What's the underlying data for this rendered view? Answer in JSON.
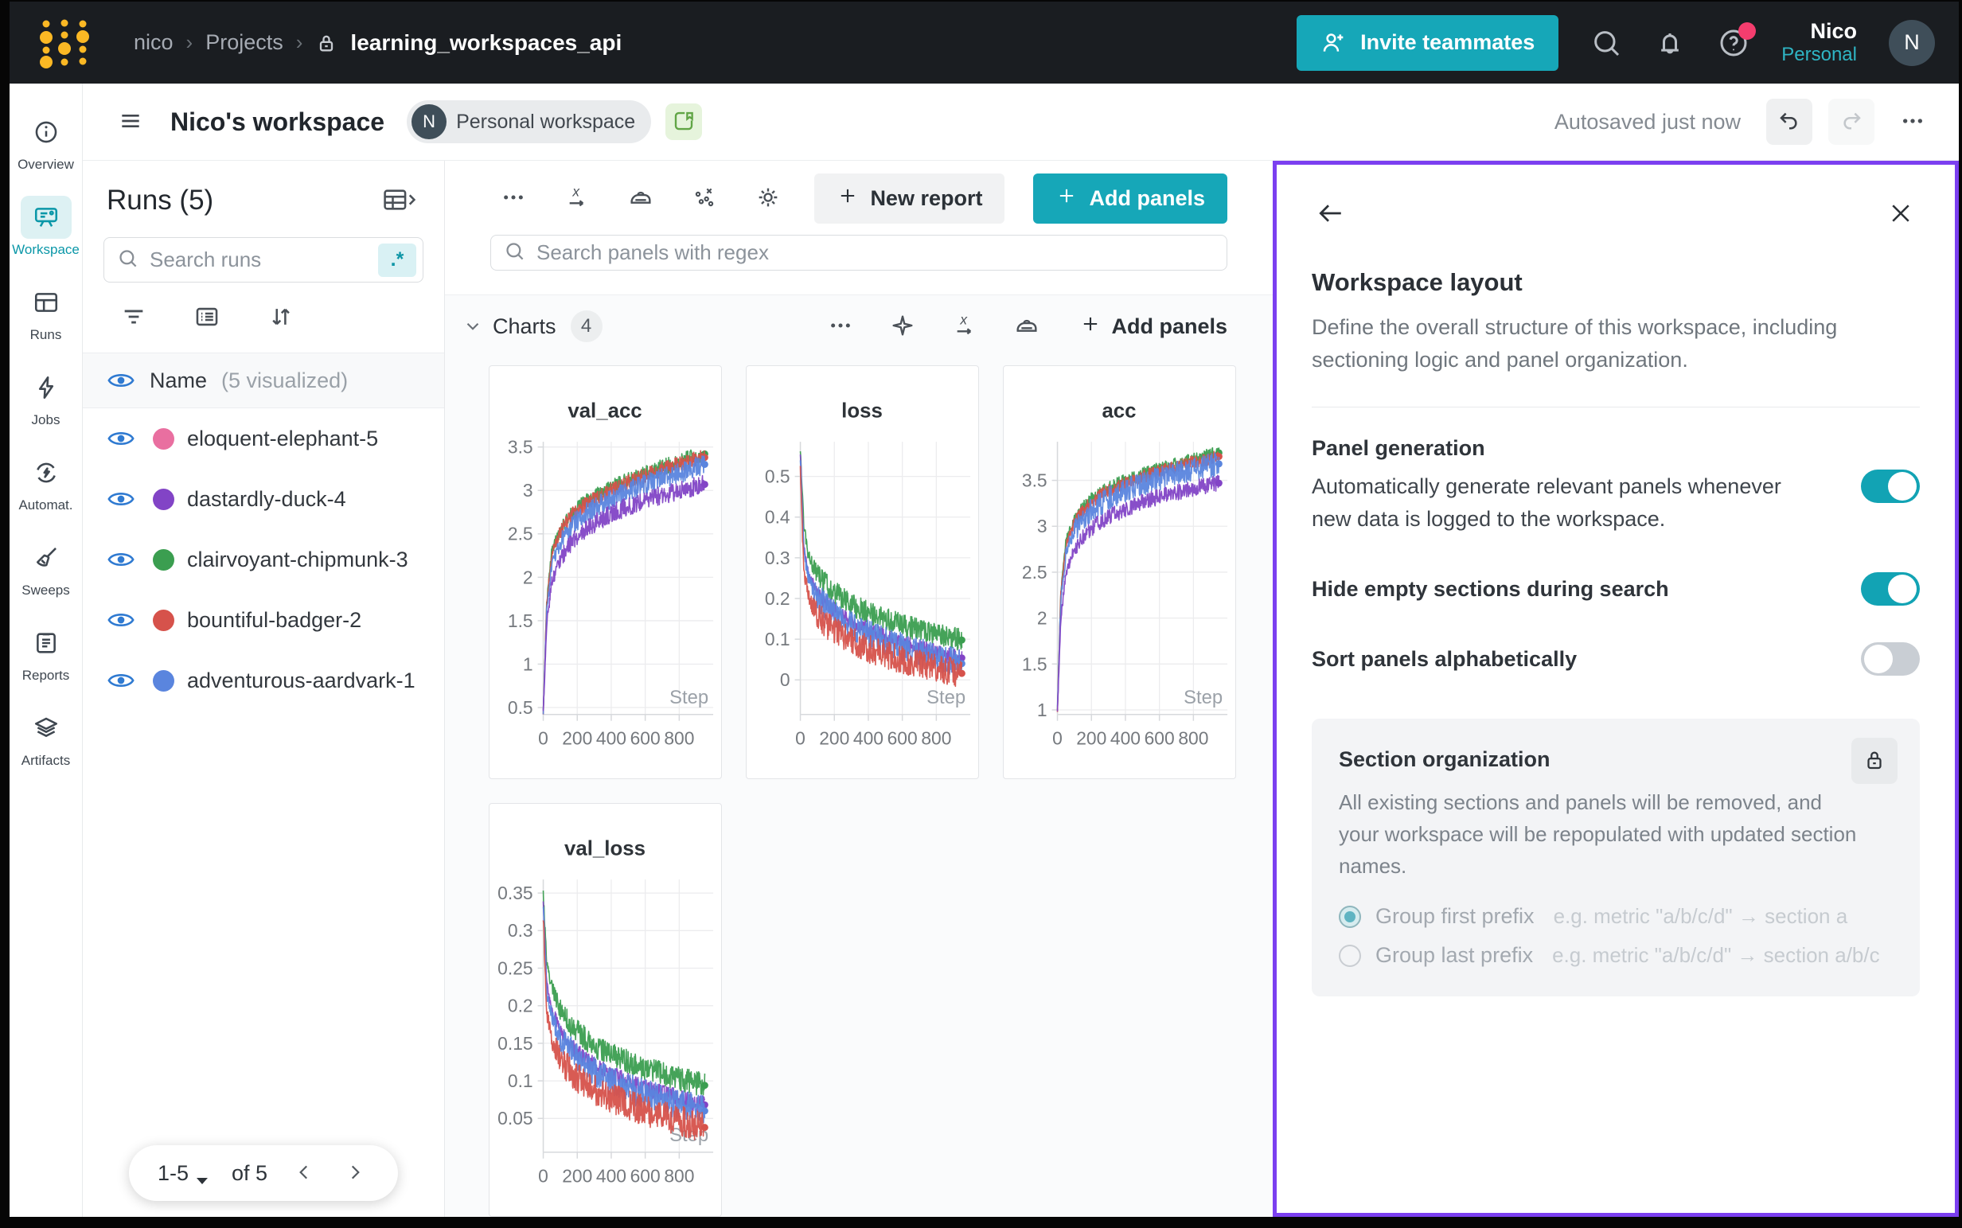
{
  "colors": {
    "brand_teal": "#16a7b8",
    "drawer_border_purple": "#7b3ff0",
    "toggle_on": "#12a3b4",
    "logo_yellow": "#fbb824",
    "notification_red": "#f43d6e",
    "active_nav_teal": "#0b97a8",
    "eye_blue": "#2f7ad1"
  },
  "topnav": {
    "breadcrumb_entity": "nico",
    "breadcrumb_projects": "Projects",
    "project": "learning_workspaces_api",
    "invite_label": "Invite teammates",
    "icons": [
      "person-add-icon",
      "search-icon",
      "bell-icon",
      "help-icon"
    ],
    "user_name": "Nico",
    "user_scope": "Personal",
    "avatar_initial": "N"
  },
  "sidebar": {
    "items": [
      {
        "label": "Overview",
        "icon": "info-icon",
        "active": false
      },
      {
        "label": "Workspace",
        "icon": "workspace-icon",
        "active": true
      },
      {
        "label": "Runs",
        "icon": "table-icon",
        "active": false
      },
      {
        "label": "Jobs",
        "icon": "bolt-icon",
        "active": false
      },
      {
        "label": "Automat.",
        "icon": "automations-icon",
        "active": false
      },
      {
        "label": "Sweeps",
        "icon": "broom-icon",
        "active": false
      },
      {
        "label": "Reports",
        "icon": "clipboard-icon",
        "active": false
      },
      {
        "label": "Artifacts",
        "icon": "layers-icon",
        "active": false
      }
    ]
  },
  "header": {
    "title": "Nico's workspace",
    "badge_initial": "N",
    "badge_label": "Personal workspace",
    "autosave": "Autosaved just now",
    "icons": [
      "menu-icon",
      "report-doc-icon",
      "undo-icon",
      "redo-icon",
      "ellipsis-icon"
    ]
  },
  "runs_panel": {
    "title": "Runs (5)",
    "table_expand_icon": "table-expand-icon",
    "search_placeholder": "Search runs",
    "regex_badge": ".*",
    "filter_icons": [
      "filter-icon",
      "list-settings-icon",
      "sort-icon"
    ],
    "header_name": "Name",
    "header_count": "(5 visualized)",
    "runs": [
      {
        "name": "eloquent-elephant-5",
        "color": "#e96fa0"
      },
      {
        "name": "dastardly-duck-4",
        "color": "#8244c6"
      },
      {
        "name": "clairvoyant-chipmunk-3",
        "color": "#3b9e50"
      },
      {
        "name": "bountiful-badger-2",
        "color": "#d6524b"
      },
      {
        "name": "adventurous-aardvark-1",
        "color": "#5a85de"
      }
    ],
    "pagination": {
      "range": "1-5",
      "of": "of 5"
    }
  },
  "main": {
    "toolbar": {
      "icons": [
        "ellipsis-icon",
        "x-axis-icon",
        "smoothing-iron-icon",
        "outliers-icon",
        "gear-icon"
      ],
      "new_report_label": "New report",
      "add_panels_label": "Add panels"
    },
    "search_placeholder": "Search panels with regex",
    "section": {
      "title": "Charts",
      "count": "4",
      "icons": [
        "ellipsis-icon",
        "sparkle-icon",
        "x-axis-icon",
        "smoothing-iron-icon"
      ],
      "add_panels_label": "Add panels"
    }
  },
  "settings": {
    "title": "Workspace layout",
    "description": "Define the overall structure of this workspace, including sectioning logic and panel organization.",
    "icons": [
      "back-arrow-icon",
      "close-icon"
    ],
    "toggles": [
      {
        "label": "Panel generation",
        "description": "Automatically generate relevant panels whenever new data is logged to the workspace.",
        "on": true
      },
      {
        "label": "Hide empty sections during search",
        "description": "",
        "on": true
      },
      {
        "label": "Sort panels alphabetically",
        "description": "",
        "on": false
      }
    ],
    "section_org": {
      "title": "Section organization",
      "lock_icon": "lock-icon",
      "description": "All existing sections and panels will be removed, and your workspace will be repopulated with updated section names.",
      "options": [
        {
          "label": "Group first prefix",
          "example": "e.g. metric \"a/b/c/d\" → section a",
          "selected": true
        },
        {
          "label": "Group last prefix",
          "example": "e.g. metric \"a/b/c/d\" → section a/b/c",
          "selected": false
        }
      ]
    }
  },
  "chart_data": [
    {
      "type": "line",
      "title": "val_acc",
      "xlabel": "Step",
      "xlim": [
        0,
        1000
      ],
      "x_ticks": [
        "0",
        "200",
        "400",
        "600",
        "800"
      ],
      "ylim": [
        0.42,
        3.56
      ],
      "y_ticks": [
        "0.5",
        "1",
        "1.5",
        "2",
        "2.5",
        "3",
        "3.5"
      ],
      "anchors_x": [
        0,
        20,
        50,
        100,
        150,
        200,
        300,
        400,
        500,
        600,
        700,
        800,
        900,
        950
      ],
      "series": [
        {
          "name": "clairvoyant-chipmunk-3",
          "color": "#3b9e50",
          "noise": 0.09,
          "y": [
            0.45,
            1.7,
            2.3,
            2.55,
            2.7,
            2.8,
            2.93,
            3.03,
            3.12,
            3.2,
            3.27,
            3.33,
            3.4,
            3.42
          ]
        },
        {
          "name": "bountiful-badger-2",
          "color": "#d6524b",
          "noise": 0.09,
          "y": [
            0.45,
            1.68,
            2.27,
            2.52,
            2.67,
            2.77,
            2.9,
            3.0,
            3.09,
            3.17,
            3.24,
            3.3,
            3.36,
            3.38
          ]
        },
        {
          "name": "adventurous-aardvark-1",
          "color": "#5a85de",
          "noise": 0.12,
          "y": [
            0.45,
            1.6,
            2.15,
            2.4,
            2.55,
            2.66,
            2.8,
            2.9,
            3.0,
            3.07,
            3.14,
            3.2,
            3.27,
            3.3
          ]
        },
        {
          "name": "dastardly-duck-4",
          "color": "#8244c6",
          "noise": 0.11,
          "y": [
            0.45,
            1.45,
            1.95,
            2.2,
            2.36,
            2.47,
            2.62,
            2.73,
            2.82,
            2.89,
            2.95,
            3.0,
            3.05,
            3.07
          ]
        }
      ]
    },
    {
      "type": "line",
      "title": "loss",
      "xlabel": "Step",
      "xlim": [
        0,
        1000
      ],
      "x_ticks": [
        "0",
        "200",
        "400",
        "600",
        "800"
      ],
      "ylim": [
        -0.085,
        0.585
      ],
      "y_ticks": [
        "0",
        "0.1",
        "0.2",
        "0.3",
        "0.4",
        "0.5"
      ],
      "anchors_x": [
        0,
        20,
        50,
        100,
        150,
        200,
        300,
        400,
        500,
        600,
        700,
        800,
        900,
        950
      ],
      "series": [
        {
          "name": "clairvoyant-chipmunk-3",
          "color": "#3b9e50",
          "noise": 0.028,
          "y": [
            0.57,
            0.38,
            0.3,
            0.26,
            0.235,
            0.215,
            0.185,
            0.165,
            0.15,
            0.135,
            0.122,
            0.112,
            0.102,
            0.098
          ]
        },
        {
          "name": "dastardly-duck-4",
          "color": "#8244c6",
          "noise": 0.02,
          "y": [
            0.56,
            0.33,
            0.255,
            0.215,
            0.19,
            0.17,
            0.142,
            0.122,
            0.105,
            0.09,
            0.078,
            0.068,
            0.058,
            0.054
          ]
        },
        {
          "name": "adventurous-aardvark-1",
          "color": "#5a85de",
          "noise": 0.035,
          "y": [
            0.55,
            0.32,
            0.245,
            0.205,
            0.18,
            0.16,
            0.132,
            0.112,
            0.095,
            0.08,
            0.068,
            0.055,
            0.045,
            0.04
          ]
        },
        {
          "name": "bountiful-badger-2",
          "color": "#d6524b",
          "noise": 0.035,
          "y": [
            0.52,
            0.27,
            0.2,
            0.16,
            0.138,
            0.12,
            0.095,
            0.077,
            0.062,
            0.05,
            0.04,
            0.03,
            0.02,
            0.016
          ]
        }
      ]
    },
    {
      "type": "line",
      "title": "acc",
      "xlabel": "Step",
      "xlim": [
        0,
        1000
      ],
      "x_ticks": [
        "0",
        "200",
        "400",
        "600",
        "800"
      ],
      "ylim": [
        0.95,
        3.92
      ],
      "y_ticks": [
        "1",
        "1.5",
        "2",
        "2.5",
        "3",
        "3.5"
      ],
      "anchors_x": [
        0,
        20,
        50,
        100,
        150,
        200,
        300,
        400,
        500,
        600,
        700,
        800,
        900,
        950
      ],
      "series": [
        {
          "name": "clairvoyant-chipmunk-3",
          "color": "#3b9e50",
          "noise": 0.07,
          "y": [
            1.0,
            2.3,
            2.85,
            3.08,
            3.2,
            3.3,
            3.42,
            3.5,
            3.57,
            3.63,
            3.68,
            3.73,
            3.78,
            3.8
          ]
        },
        {
          "name": "bountiful-badger-2",
          "color": "#d6524b",
          "noise": 0.07,
          "y": [
            1.0,
            2.27,
            2.8,
            3.04,
            3.17,
            3.27,
            3.39,
            3.47,
            3.54,
            3.6,
            3.65,
            3.7,
            3.74,
            3.76
          ]
        },
        {
          "name": "adventurous-aardvark-1",
          "color": "#5a85de",
          "noise": 0.13,
          "y": [
            1.0,
            2.2,
            2.7,
            2.95,
            3.08,
            3.18,
            3.3,
            3.39,
            3.46,
            3.52,
            3.58,
            3.62,
            3.66,
            3.68
          ]
        },
        {
          "name": "dastardly-duck-4",
          "color": "#8244c6",
          "noise": 0.09,
          "y": [
            1.0,
            2.0,
            2.5,
            2.75,
            2.88,
            2.98,
            3.1,
            3.19,
            3.26,
            3.32,
            3.37,
            3.41,
            3.45,
            3.47
          ]
        }
      ]
    },
    {
      "type": "line",
      "title": "val_loss",
      "xlabel": "Step",
      "xlim": [
        0,
        1000
      ],
      "x_ticks": [
        "0",
        "200",
        "400",
        "600",
        "800"
      ],
      "ylim": [
        0.005,
        0.368
      ],
      "y_ticks": [
        "0.05",
        "0.1",
        "0.15",
        "0.2",
        "0.25",
        "0.3",
        "0.35"
      ],
      "anchors_x": [
        0,
        20,
        50,
        100,
        150,
        200,
        300,
        400,
        500,
        600,
        700,
        800,
        900,
        950
      ],
      "series": [
        {
          "name": "clairvoyant-chipmunk-3",
          "color": "#3b9e50",
          "noise": 0.016,
          "y": [
            0.35,
            0.26,
            0.225,
            0.195,
            0.178,
            0.165,
            0.147,
            0.135,
            0.125,
            0.117,
            0.11,
            0.103,
            0.097,
            0.094
          ]
        },
        {
          "name": "dastardly-duck-4",
          "color": "#8244c6",
          "noise": 0.012,
          "y": [
            0.34,
            0.23,
            0.195,
            0.168,
            0.15,
            0.138,
            0.12,
            0.108,
            0.098,
            0.09,
            0.083,
            0.077,
            0.071,
            0.068
          ]
        },
        {
          "name": "adventurous-aardvark-1",
          "color": "#5a85de",
          "noise": 0.02,
          "y": [
            0.335,
            0.22,
            0.185,
            0.158,
            0.142,
            0.13,
            0.112,
            0.1,
            0.09,
            0.082,
            0.075,
            0.069,
            0.063,
            0.06
          ]
        },
        {
          "name": "bountiful-badger-2",
          "color": "#d6524b",
          "noise": 0.02,
          "y": [
            0.32,
            0.19,
            0.155,
            0.13,
            0.115,
            0.104,
            0.088,
            0.077,
            0.068,
            0.06,
            0.053,
            0.047,
            0.041,
            0.038
          ]
        }
      ]
    }
  ]
}
